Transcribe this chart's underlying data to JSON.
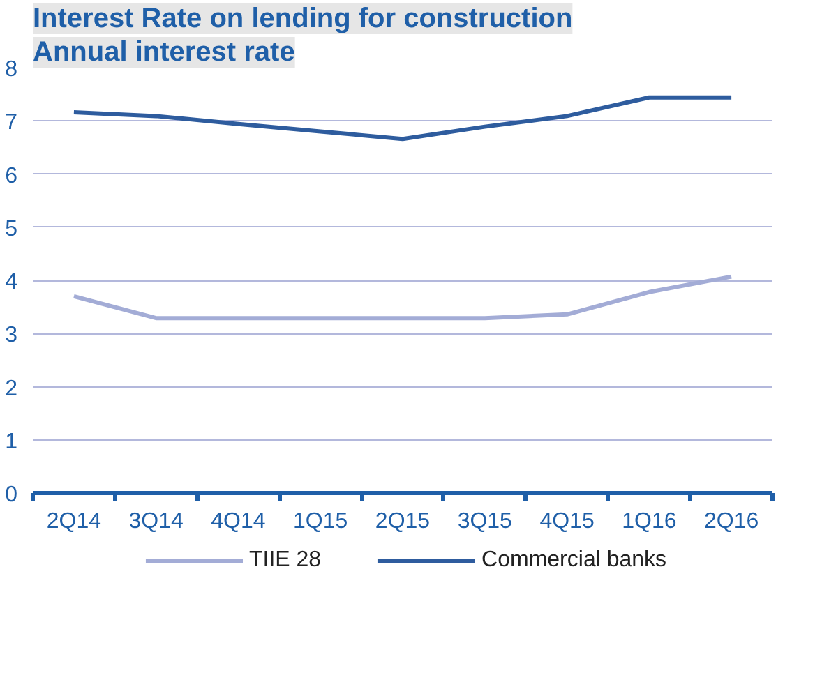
{
  "chart_data": {
    "type": "line",
    "title": "Interest Rate on lending for construction",
    "subtitle": "Annual interest rate",
    "categories": [
      "2Q14",
      "3Q14",
      "4Q14",
      "1Q15",
      "2Q15",
      "3Q15",
      "4Q15",
      "1Q16",
      "2Q16"
    ],
    "series": [
      {
        "name": "TIIE 28",
        "color": "#a3acd6",
        "values": [
          3.7,
          3.29,
          3.29,
          3.29,
          3.29,
          3.29,
          3.36,
          3.78,
          4.07
        ]
      },
      {
        "name": "Commercial banks",
        "color": "#2e5c9e",
        "values": [
          7.16,
          7.09,
          6.94,
          6.8,
          6.66,
          6.89,
          7.09,
          7.44,
          7.44
        ]
      }
    ],
    "ylim": [
      0,
      8
    ],
    "yticks": [
      0,
      1,
      2,
      3,
      4,
      5,
      6,
      7,
      8
    ],
    "grid": "y",
    "legend": "bottom",
    "marker": "none",
    "line_style": "solid"
  }
}
